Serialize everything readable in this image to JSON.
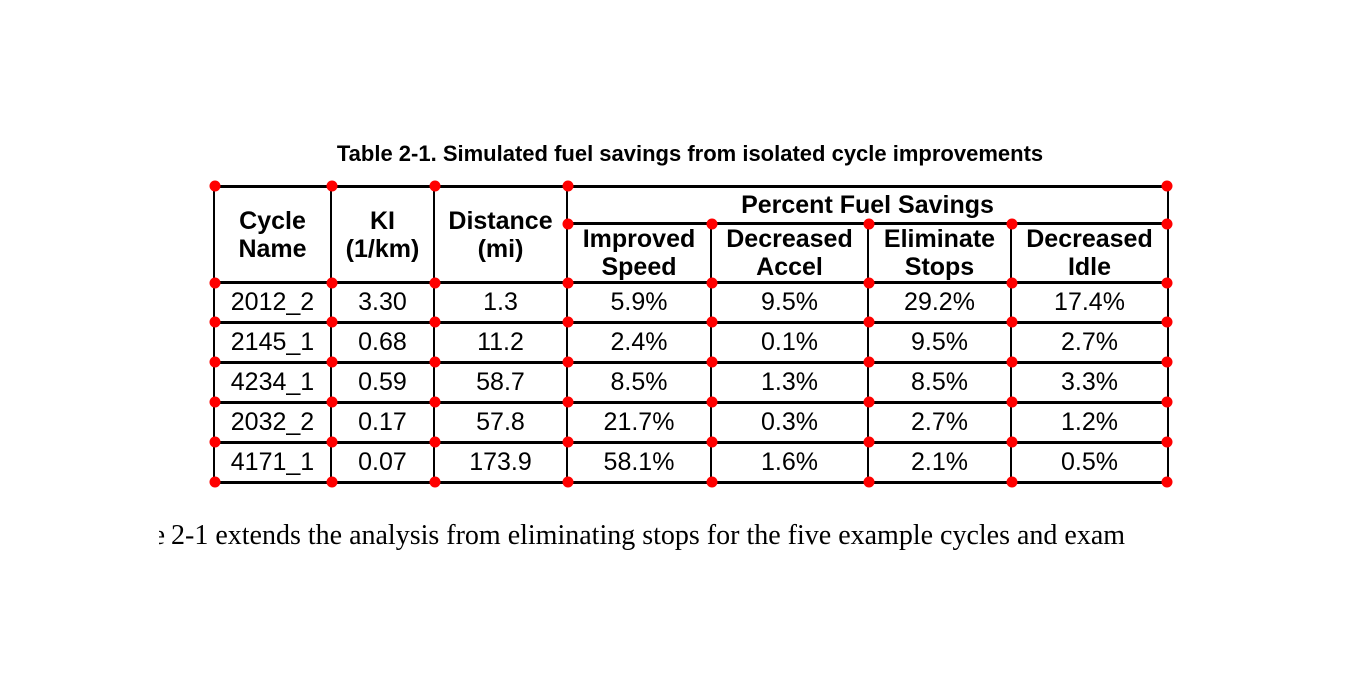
{
  "page": {
    "background": "#ffffff"
  },
  "table": {
    "title": "Table 2-1. Simulated fuel savings from isolated cycle improvements",
    "span_header": "Percent Fuel Savings",
    "columns": [
      [
        "Cycle",
        "Name"
      ],
      [
        "KI",
        "(1/km)"
      ],
      [
        "Distance",
        "(mi)"
      ],
      [
        "Improved",
        "Speed"
      ],
      [
        "Decreased",
        "Accel"
      ],
      [
        "Eliminate",
        "Stops"
      ],
      [
        "Decreased",
        "Idle"
      ]
    ],
    "rows": [
      [
        "2012_2",
        "3.30",
        "1.3",
        "5.9%",
        "9.5%",
        "29.2%",
        "17.4%"
      ],
      [
        "2145_1",
        "0.68",
        "11.2",
        "2.4%",
        "0.1%",
        "9.5%",
        "2.7%"
      ],
      [
        "4234_1",
        "0.59",
        "58.7",
        "8.5%",
        "1.3%",
        "8.5%",
        "3.3%"
      ],
      [
        "2032_2",
        "0.17",
        "57.8",
        "21.7%",
        "0.3%",
        "2.7%",
        "1.2%"
      ],
      [
        "4171_1",
        "0.07",
        "173.9",
        "58.1%",
        "1.6%",
        "2.1%",
        "0.5%"
      ]
    ]
  },
  "body_text": {
    "leading_fragment": "e",
    "line": "2-1 extends the analysis from eliminating stops for the five example cycles and exam"
  },
  "annotations": {
    "marker_color": "#ff0000",
    "marker_shape": "circle",
    "line_color": "#000000"
  }
}
